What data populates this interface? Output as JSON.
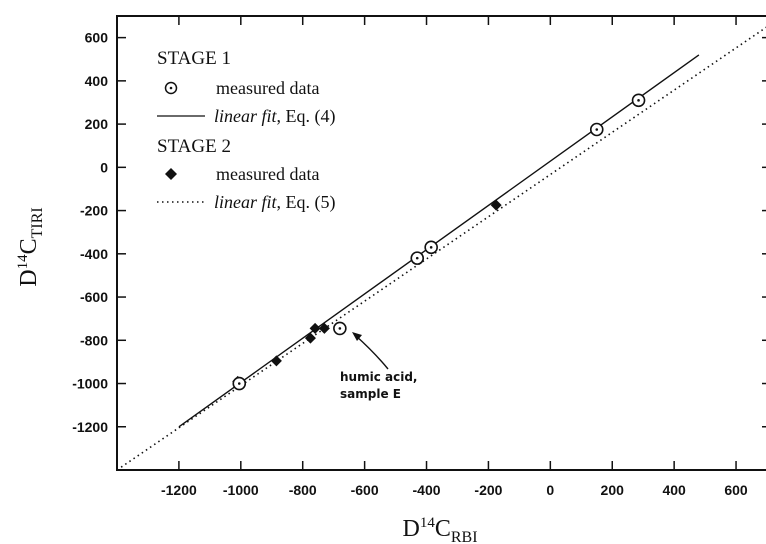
{
  "chart_data": {
    "type": "scatter",
    "xlim": [
      -1400,
      700
    ],
    "ylim": [
      -1400,
      700
    ],
    "x_ticks": [
      -1200,
      -1000,
      -800,
      -600,
      -400,
      -200,
      0,
      200,
      400,
      600
    ],
    "y_ticks": [
      -1200,
      -1000,
      -800,
      -600,
      -400,
      -200,
      0,
      200,
      400,
      600
    ],
    "x_tick_labels": [
      "-1200",
      "-1000",
      "-800",
      "-600",
      "-400",
      "-200",
      "0",
      "200",
      "400",
      "600"
    ],
    "y_tick_labels": [
      "-1200",
      "-1000",
      "-800",
      "-600",
      "-400",
      "-200",
      "0",
      "200",
      "400",
      "600"
    ],
    "xlabel": {
      "base": "D",
      "sup": "14",
      "main": "C",
      "sub": "RBI"
    },
    "ylabel": {
      "base": "D",
      "sup": "14",
      "main": "C",
      "sub": "TIRI"
    },
    "grid": false,
    "legend_position": "top-left",
    "series": [
      {
        "name": "measured data",
        "group": "STAGE 1",
        "marker": "circle-dot",
        "points": [
          [
            -1005,
            -1000
          ],
          [
            -680,
            -745
          ],
          [
            -430,
            -420
          ],
          [
            -385,
            -370
          ],
          [
            150,
            175
          ],
          [
            285,
            310
          ]
        ]
      },
      {
        "name": "linear fit, Eq. (4)",
        "group": "STAGE 1",
        "line": "solid",
        "segment": [
          [
            -1200,
            -1200
          ],
          [
            480,
            520
          ]
        ]
      },
      {
        "name": "measured data",
        "group": "STAGE 2",
        "marker": "diamond",
        "points": [
          [
            -1010,
            -990
          ],
          [
            -1000,
            -995
          ],
          [
            -885,
            -895
          ],
          [
            -775,
            -790
          ],
          [
            -760,
            -745
          ],
          [
            -730,
            -745
          ],
          [
            -175,
            -175
          ]
        ]
      },
      {
        "name": "linear fit, Eq. (5)",
        "group": "STAGE 2",
        "line": "dotted",
        "segment": [
          [
            -1400,
            -1400
          ],
          [
            700,
            650
          ]
        ]
      }
    ],
    "legend": {
      "stage1": "STAGE 1",
      "stage1_data_label": "measured data",
      "stage1_fit_label": "linear fit",
      "stage1_fit_suffix": ", Eq. (4)",
      "stage2": "STAGE 2",
      "stage2_data_label": "measured data",
      "stage2_fit_label": "linear fit",
      "stage2_fit_suffix": ", Eq. (5)"
    },
    "annotation": {
      "lines": [
        "humic acid,",
        "sample E"
      ],
      "target": [
        -680,
        -745
      ]
    }
  }
}
